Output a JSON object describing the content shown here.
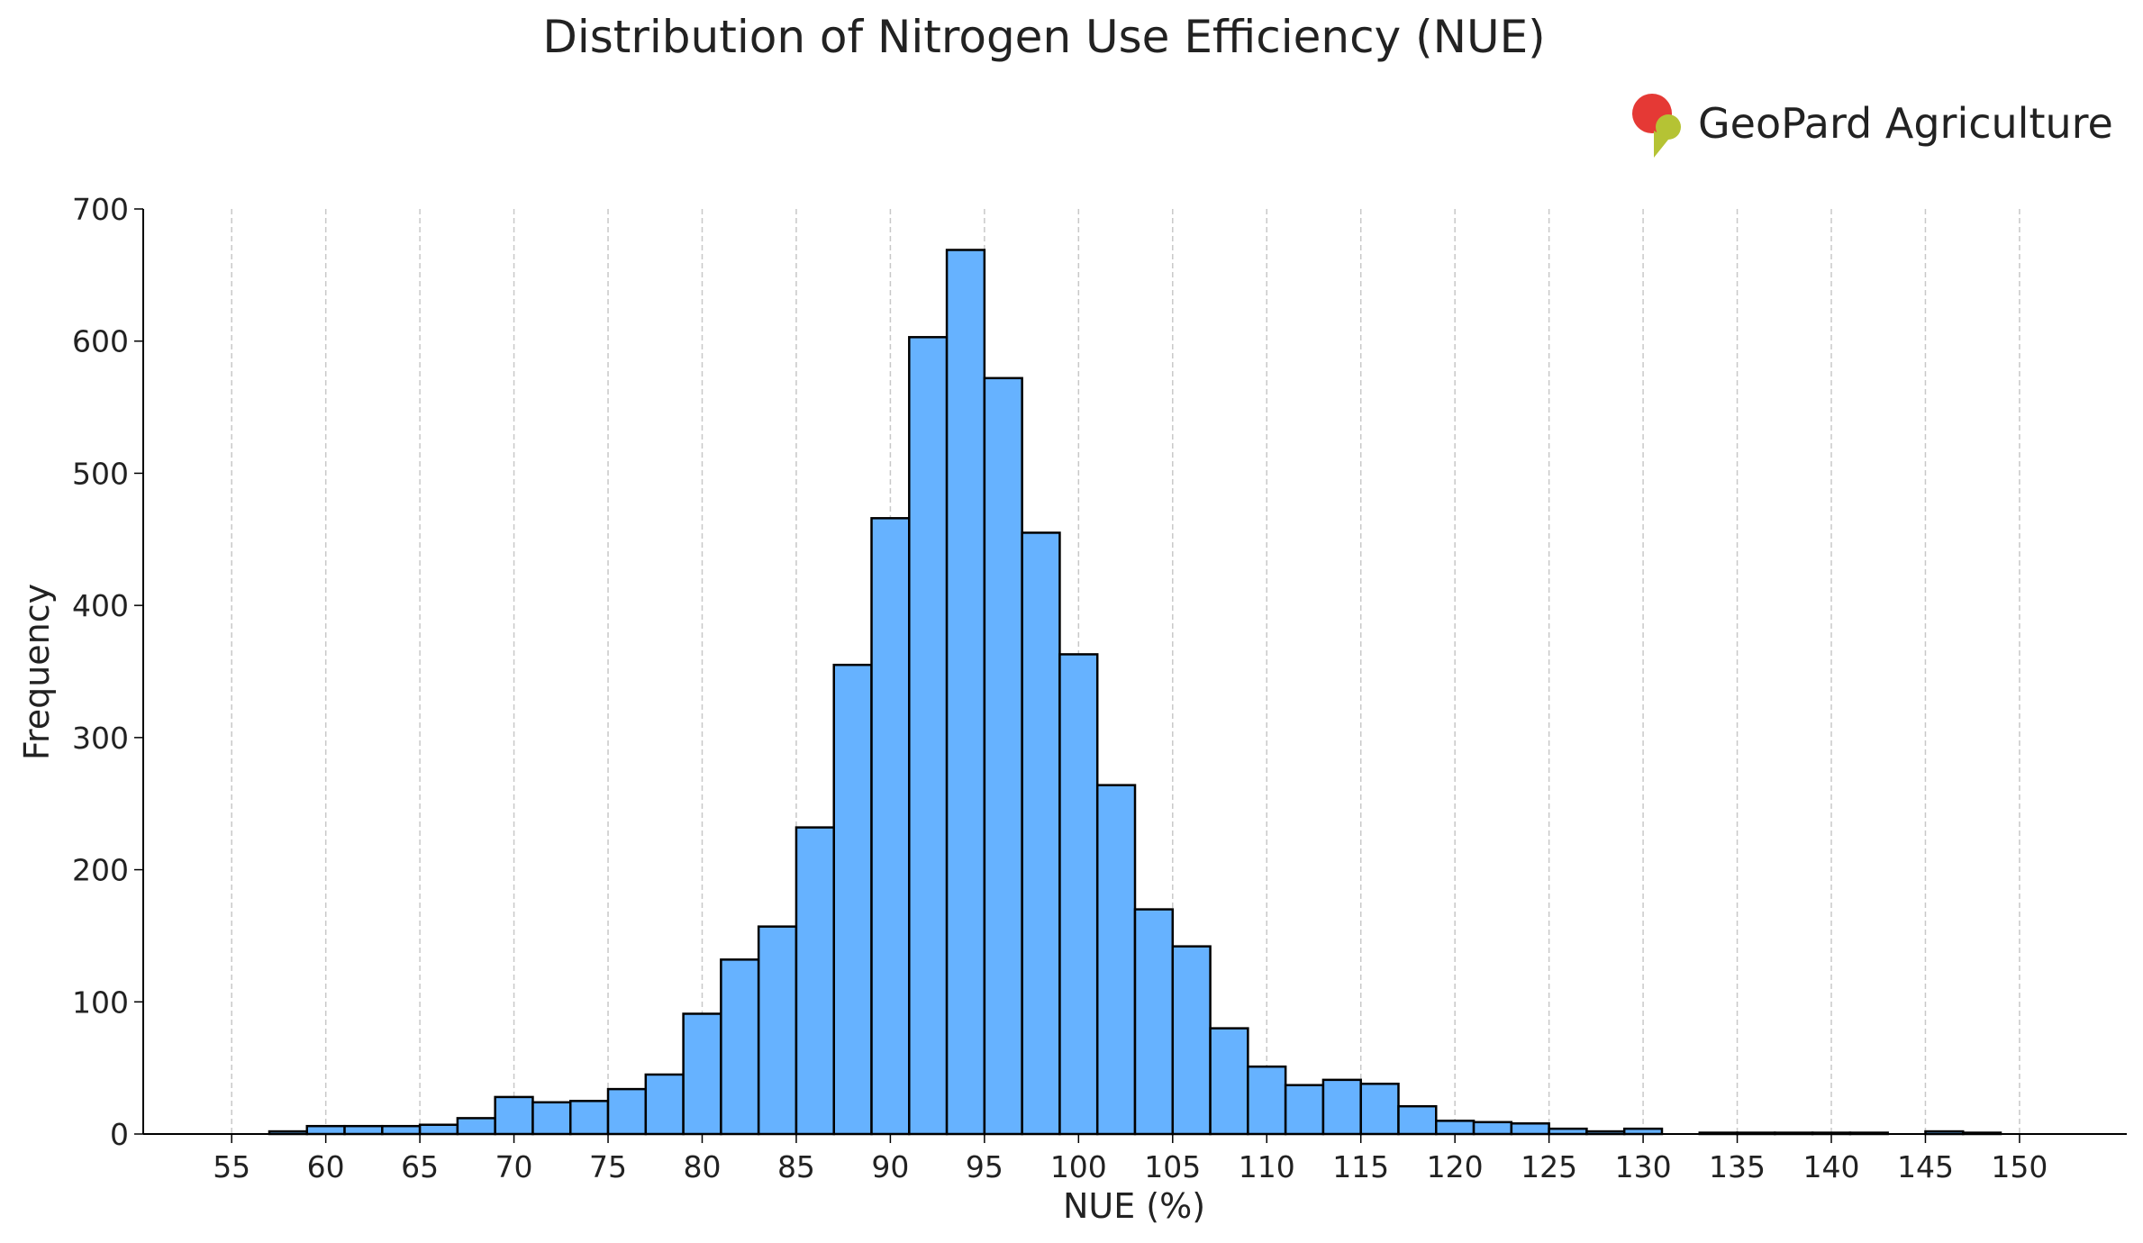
{
  "chart_data": {
    "type": "histogram",
    "title": "Distribution of Nitrogen Use Efficiency (NUE)",
    "logo": "GeoPard Agriculture",
    "x_label": "NUE (%)",
    "y_label": "Frequency",
    "bins": [
      57,
      59,
      61,
      63,
      65,
      67,
      69,
      71,
      73,
      75,
      77,
      79,
      81,
      83,
      85,
      87,
      89,
      91,
      93,
      95,
      97,
      99,
      101,
      103,
      105,
      107,
      109,
      111,
      113,
      115,
      117,
      119,
      121,
      123,
      125,
      127,
      129,
      131,
      133,
      135,
      137,
      139,
      141,
      143,
      145,
      147,
      149
    ],
    "counts": [
      2,
      6,
      6,
      6,
      7,
      12,
      28,
      24,
      25,
      34,
      45,
      91,
      132,
      157,
      232,
      355,
      466,
      603,
      669,
      572,
      455,
      363,
      264,
      170,
      142,
      80,
      51,
      37,
      41,
      38,
      21,
      10,
      9,
      8,
      4,
      2,
      4,
      0,
      1,
      1,
      1,
      1,
      1,
      0,
      2,
      1
    ],
    "color": "#66b2ff",
    "edgecolor": "#000000",
    "xlim": [
      50.3,
      155.7
    ],
    "xticks": [
      55,
      60,
      65,
      70,
      75,
      80,
      85,
      90,
      95,
      100,
      105,
      110,
      115,
      120,
      125,
      130,
      135,
      140,
      145,
      150
    ],
    "ylim": [
      0,
      700
    ],
    "yticks": [
      0,
      100,
      200,
      300,
      400,
      500,
      600,
      700
    ],
    "grid": "x"
  }
}
